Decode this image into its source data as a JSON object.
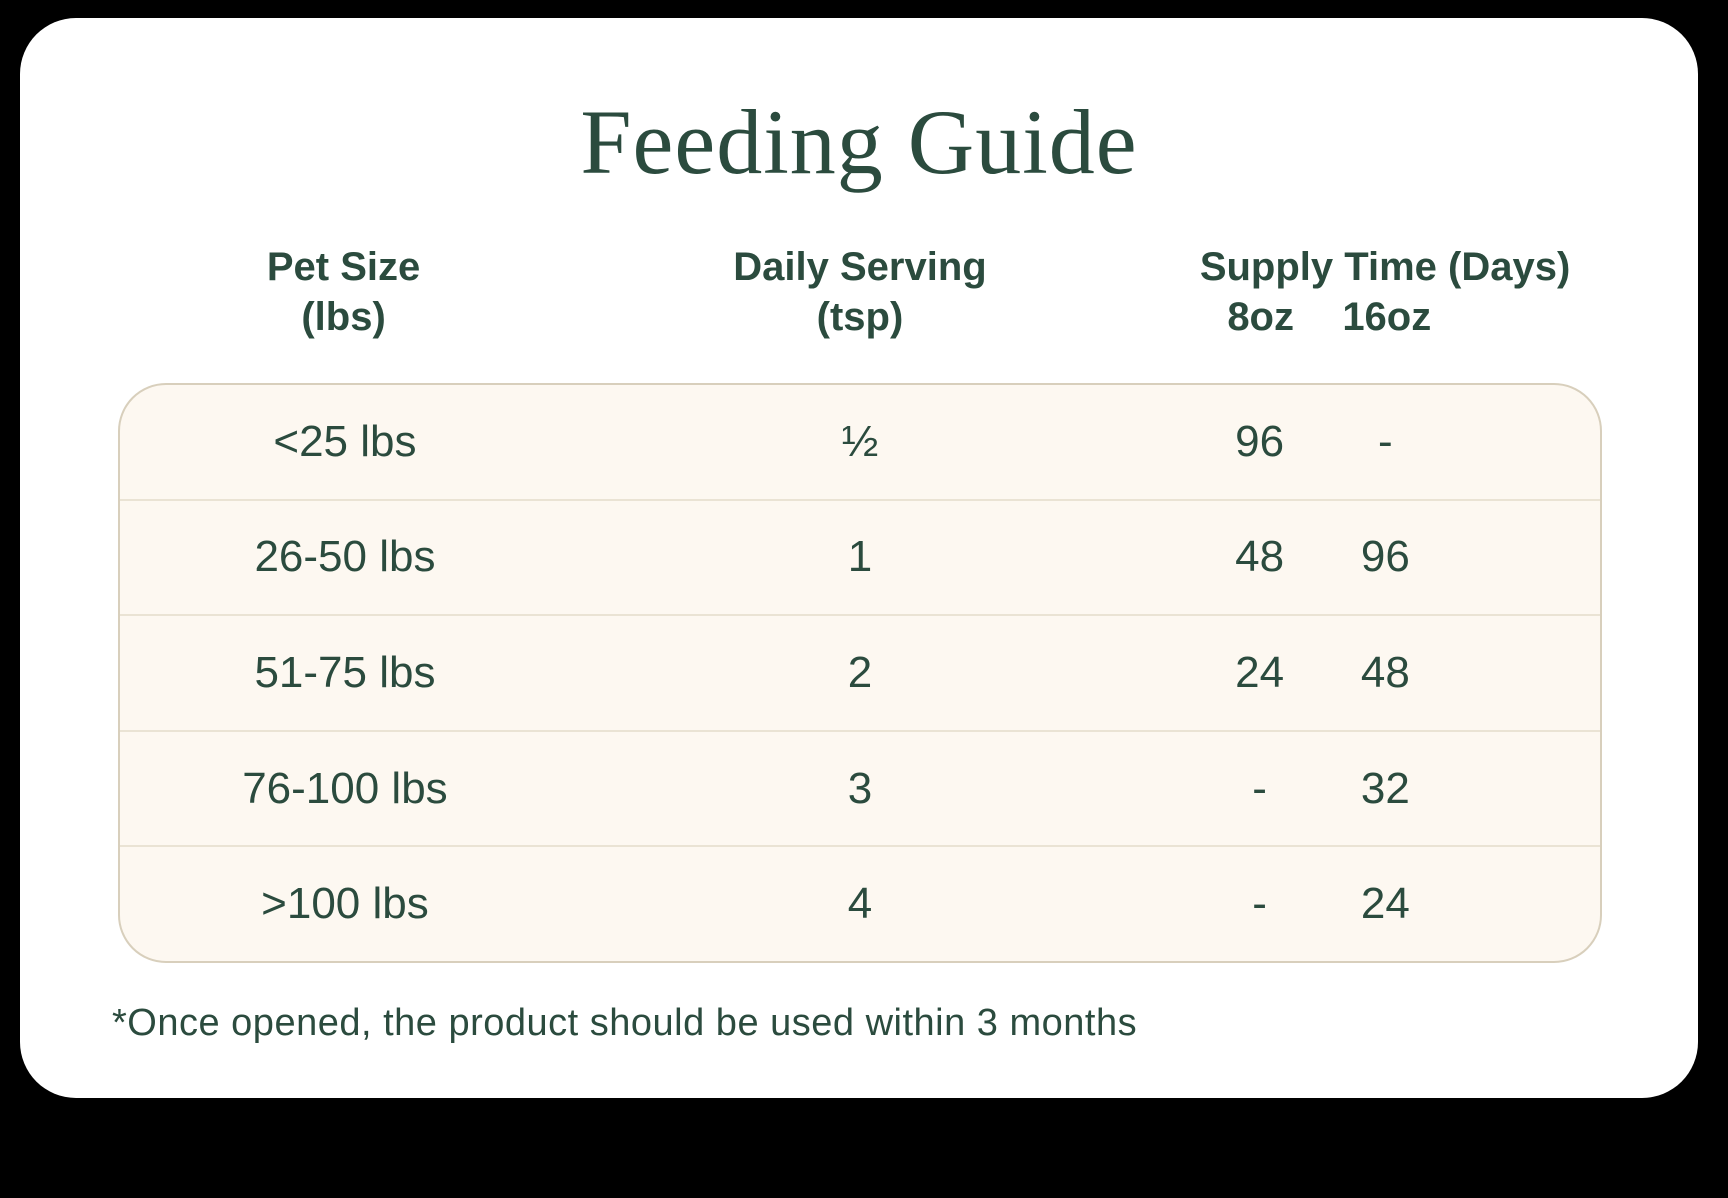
{
  "colors": {
    "background": "#000000",
    "card": "#ffffff",
    "text_green": "#2b4b3e",
    "table_background": "#fdf8f1",
    "table_border": "#d8cfbc",
    "row_divider": "#eae3d4"
  },
  "title": "Feeding Guide",
  "table": {
    "header": {
      "pet_size_line1": "Pet Size",
      "pet_size_line2": "(lbs)",
      "daily_serving_line1": "Daily Serving",
      "daily_serving_line2": "(tsp)",
      "supply_time_group": "Supply Time (Days)",
      "supply_8oz": "8oz",
      "supply_16oz": "16oz"
    },
    "rows": [
      {
        "pet_size": "<25 lbs",
        "daily_serving": "½",
        "supply_8oz": "96",
        "supply_16oz": "-"
      },
      {
        "pet_size": "26-50 lbs",
        "daily_serving": "1",
        "supply_8oz": "48",
        "supply_16oz": "96"
      },
      {
        "pet_size": "51-75 lbs",
        "daily_serving": "2",
        "supply_8oz": "24",
        "supply_16oz": "48"
      },
      {
        "pet_size": "76-100 lbs",
        "daily_serving": "3",
        "supply_8oz": "-",
        "supply_16oz": "32"
      },
      {
        "pet_size": ">100 lbs",
        "daily_serving": "4",
        "supply_8oz": "-",
        "supply_16oz": "24"
      }
    ]
  },
  "footnote": "*Once opened, the product should be used within 3 months",
  "chart_data": {
    "type": "table",
    "title": "Feeding Guide",
    "columns": [
      "Pet Size (lbs)",
      "Daily Serving (tsp)",
      "Supply Time (Days) 8oz",
      "Supply Time (Days) 16oz"
    ],
    "rows": [
      [
        "<25 lbs",
        "½",
        "96",
        "-"
      ],
      [
        "26-50 lbs",
        "1",
        "48",
        "96"
      ],
      [
        "51-75 lbs",
        "2",
        "24",
        "48"
      ],
      [
        "76-100 lbs",
        "3",
        "-",
        "32"
      ],
      [
        ">100 lbs",
        "4",
        "-",
        "24"
      ]
    ],
    "footnote": "*Once opened, the product should be used within 3 months",
    "layout": {
      "title_font": "serif",
      "header_rows": 2,
      "grid": "row dividers only, no column lines",
      "card_shape": "rounded rectangle"
    }
  }
}
